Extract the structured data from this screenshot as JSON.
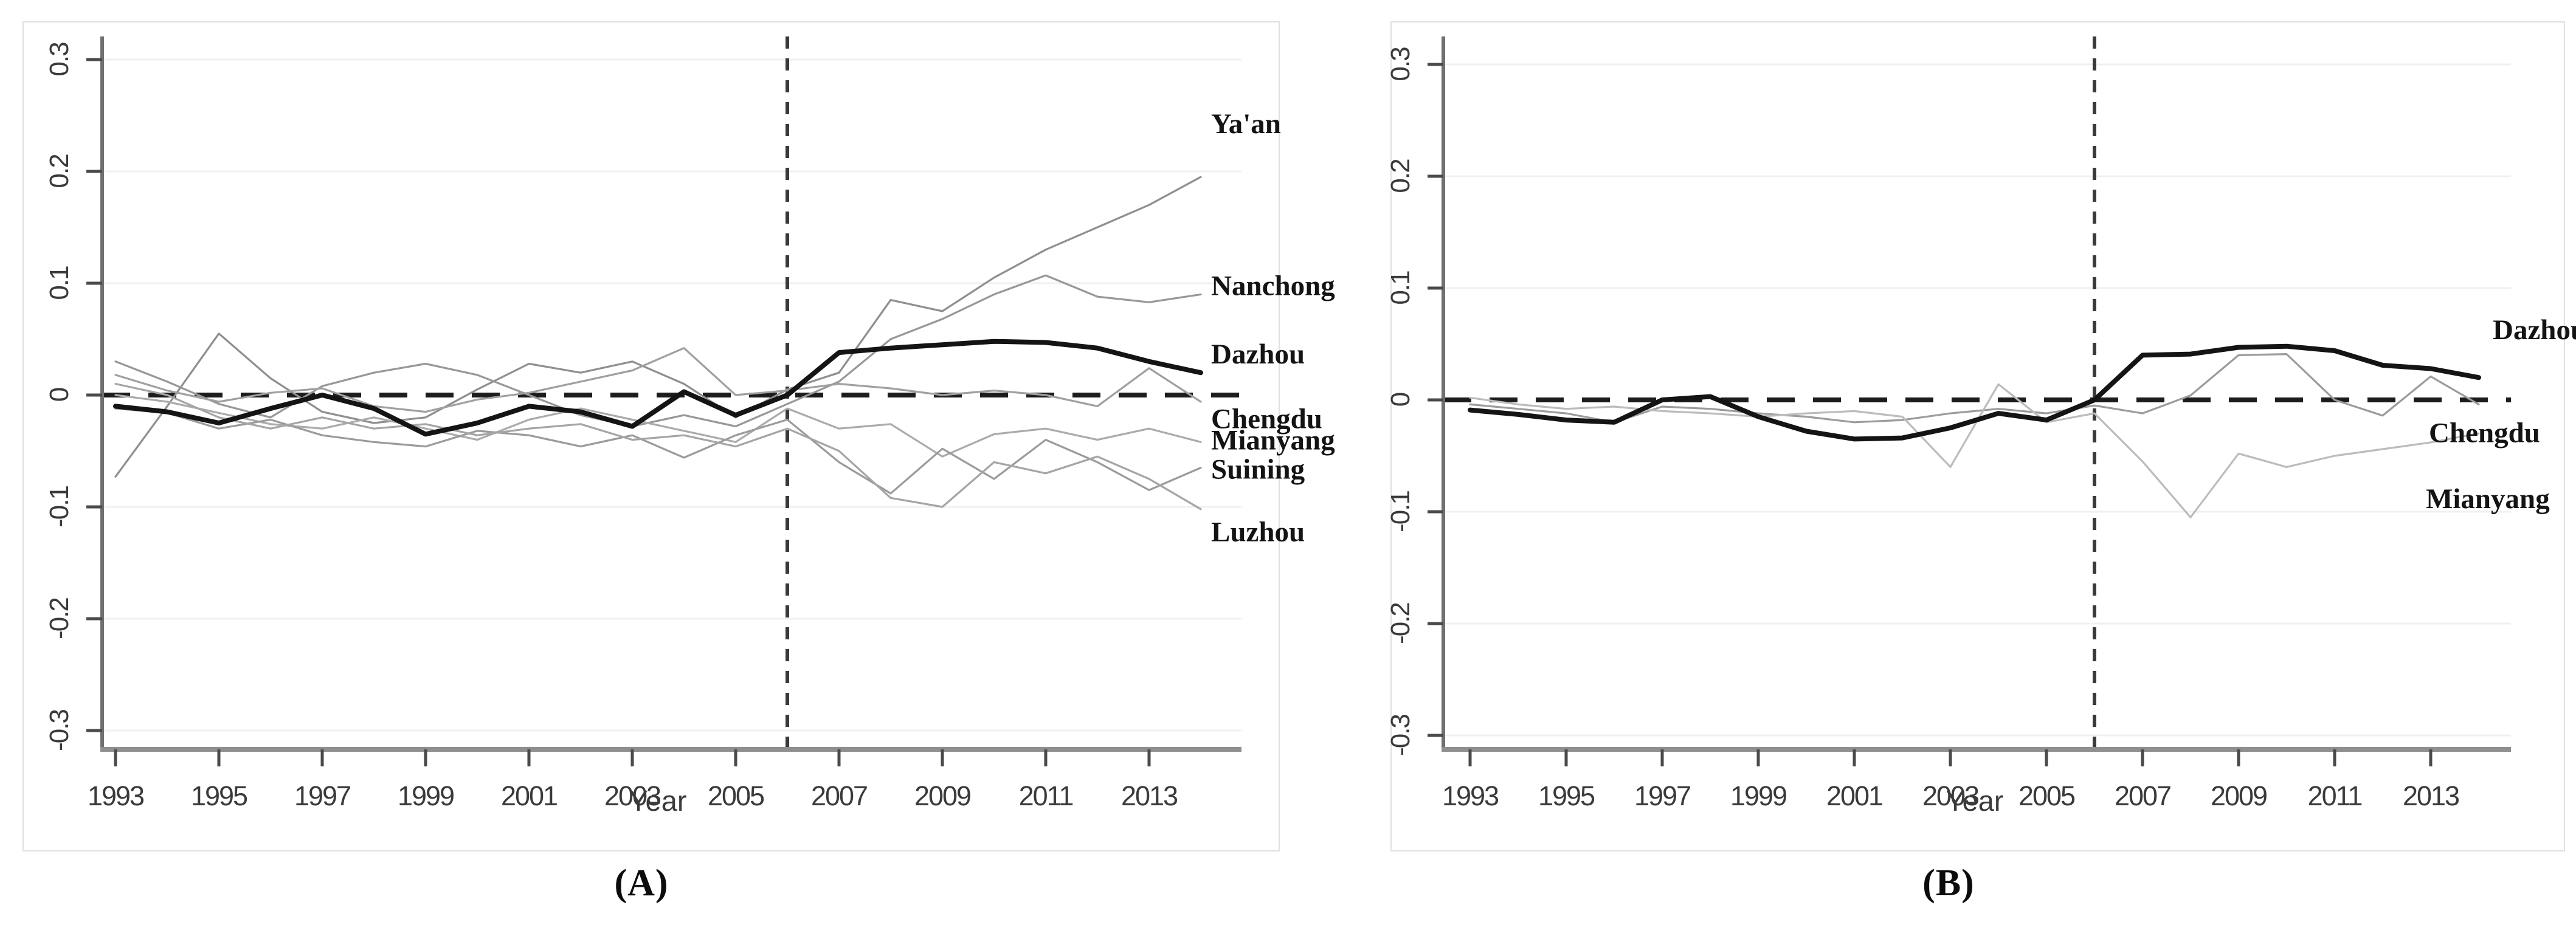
{
  "figure": {
    "caption_a": "(A)",
    "caption_b": "(B)"
  },
  "colors": {
    "axis": "#8f8f8f",
    "tick": "#4a4a4a",
    "tick_text": "#3a3a3a",
    "grid": "#f0f0f0",
    "zero_dash": "#1c1c1c",
    "vline_dash": "#3a3a3a",
    "city_label_text": "#141414",
    "figure_border": "#e0e0e0",
    "emphasis_line": "#141414"
  },
  "chart_data": [
    {
      "panel": "A",
      "type": "line",
      "caption": "(A)",
      "xlabel": "Year",
      "x": [
        1993,
        1994,
        1995,
        1996,
        1997,
        1998,
        1999,
        2000,
        2001,
        2002,
        2003,
        2004,
        2005,
        2006,
        2007,
        2008,
        2009,
        2010,
        2011,
        2012,
        2013,
        2014
      ],
      "xticks": [
        1993,
        1995,
        1997,
        1999,
        2001,
        2003,
        2005,
        2007,
        2009,
        2011,
        2013
      ],
      "yticks": [
        0.3,
        0.2,
        0.1,
        0,
        -0.1,
        -0.2,
        -0.3
      ],
      "ylim": [
        -0.3,
        0.3
      ],
      "treatment_vline_year": 2006,
      "zero_dashed_hline": 0,
      "grid": "horizontal-light",
      "legend_position": "right-margin-labels",
      "series": [
        {
          "name": "Ya'an",
          "color": "#8f8f8f",
          "width": 3.2,
          "emphasis": false,
          "label_value": 0.243,
          "values": [
            -0.073,
            -0.01,
            0.055,
            0.015,
            -0.015,
            -0.025,
            -0.02,
            0.005,
            0.028,
            0.02,
            0.03,
            0.01,
            -0.02,
            0.005,
            0.02,
            0.085,
            0.075,
            0.105,
            0.13,
            0.15,
            0.17,
            0.195
          ]
        },
        {
          "name": "Nanchong",
          "color": "#989898",
          "width": 3.2,
          "emphasis": false,
          "label_value": 0.098,
          "values": [
            0.03,
            0.012,
            -0.008,
            -0.02,
            0.008,
            0.02,
            0.028,
            0.018,
            0.0,
            -0.018,
            -0.028,
            -0.018,
            -0.028,
            -0.008,
            0.012,
            0.05,
            0.068,
            0.09,
            0.107,
            0.088,
            0.083,
            0.09
          ]
        },
        {
          "name": "Dazhou",
          "color": "#141414",
          "width": 8,
          "emphasis": true,
          "label_value": 0.037,
          "values": [
            -0.01,
            -0.015,
            -0.025,
            -0.012,
            0.0,
            -0.012,
            -0.035,
            -0.025,
            -0.01,
            -0.015,
            -0.028,
            0.003,
            -0.018,
            0.0,
            0.038,
            0.042,
            0.045,
            0.048,
            0.047,
            0.042,
            0.03,
            0.02
          ]
        },
        {
          "name": "Chengdu",
          "color": "#a0a0a0",
          "width": 3.2,
          "emphasis": false,
          "label_value": -0.021,
          "values": [
            0.018,
            0.004,
            -0.006,
            0.002,
            0.006,
            -0.01,
            -0.015,
            -0.004,
            0.002,
            0.012,
            0.022,
            0.042,
            0.0,
            0.004,
            0.01,
            0.006,
            0.0,
            0.004,
            0.0,
            -0.01,
            0.024,
            -0.006
          ]
        },
        {
          "name": "Mianyang",
          "color": "#ababab",
          "width": 3.2,
          "emphasis": false,
          "label_value": -0.04,
          "values": [
            0.0,
            -0.006,
            -0.016,
            -0.026,
            -0.03,
            -0.02,
            -0.03,
            -0.04,
            -0.022,
            -0.012,
            -0.022,
            -0.032,
            -0.042,
            -0.012,
            -0.03,
            -0.026,
            -0.055,
            -0.035,
            -0.03,
            -0.04,
            -0.03,
            -0.042
          ]
        },
        {
          "name": "Suining",
          "color": "#9b9b9b",
          "width": 3.2,
          "emphasis": false,
          "label_value": -0.066,
          "values": [
            -0.012,
            -0.016,
            -0.03,
            -0.022,
            -0.036,
            -0.042,
            -0.046,
            -0.032,
            -0.036,
            -0.046,
            -0.036,
            -0.056,
            -0.036,
            -0.022,
            -0.06,
            -0.088,
            -0.048,
            -0.075,
            -0.04,
            -0.06,
            -0.085,
            -0.065
          ]
        },
        {
          "name": "Luzhou",
          "color": "#a5a5a5",
          "width": 3.2,
          "emphasis": false,
          "label_value": -0.122,
          "values": [
            0.01,
            0.0,
            -0.02,
            -0.03,
            -0.02,
            -0.03,
            -0.026,
            -0.036,
            -0.03,
            -0.026,
            -0.04,
            -0.036,
            -0.046,
            -0.03,
            -0.05,
            -0.092,
            -0.1,
            -0.06,
            -0.07,
            -0.055,
            -0.075,
            -0.102
          ]
        }
      ]
    },
    {
      "panel": "B",
      "type": "line",
      "caption": "(B)",
      "xlabel": "Year",
      "x": [
        1993,
        1994,
        1995,
        1996,
        1997,
        1998,
        1999,
        2000,
        2001,
        2002,
        2003,
        2004,
        2005,
        2006,
        2007,
        2008,
        2009,
        2010,
        2011,
        2012,
        2013,
        2014
      ],
      "xticks": [
        1993,
        1995,
        1997,
        1999,
        2001,
        2003,
        2005,
        2007,
        2009,
        2011,
        2013
      ],
      "yticks": [
        0.3,
        0.2,
        0.1,
        0,
        -0.1,
        -0.2,
        -0.3
      ],
      "ylim": [
        -0.3,
        0.3
      ],
      "treatment_vline_year": 2006,
      "zero_dashed_hline": 0,
      "grid": "horizontal-light",
      "legend_position": "right-margin-labels",
      "series": [
        {
          "name": "Dazhou",
          "color": "#141414",
          "width": 8,
          "emphasis": true,
          "label_value": 0.063,
          "label_x": 4100,
          "values": [
            -0.009,
            -0.013,
            -0.018,
            -0.02,
            0.0,
            0.003,
            -0.015,
            -0.028,
            -0.035,
            -0.034,
            -0.025,
            -0.012,
            -0.018,
            0.0,
            0.04,
            0.041,
            0.047,
            0.048,
            0.044,
            0.031,
            0.028,
            0.02
          ]
        },
        {
          "name": "Chengdu",
          "color": "#9c9c9c",
          "width": 3.2,
          "emphasis": false,
          "label_value": -0.029,
          "label_x": 3995,
          "values": [
            -0.004,
            -0.008,
            -0.012,
            -0.02,
            -0.006,
            -0.008,
            -0.012,
            -0.015,
            -0.02,
            -0.018,
            -0.012,
            -0.008,
            -0.012,
            -0.005,
            -0.012,
            0.004,
            0.04,
            0.041,
            0.0,
            -0.014,
            0.021,
            -0.004
          ]
        },
        {
          "name": "Mianyang",
          "color": "#bcbcbc",
          "width": 3.2,
          "emphasis": false,
          "label_value": -0.088,
          "label_x": 3990,
          "values": [
            0.002,
            -0.004,
            -0.008,
            -0.006,
            -0.01,
            -0.012,
            -0.015,
            -0.012,
            -0.01,
            -0.015,
            -0.06,
            0.014,
            -0.02,
            -0.012,
            -0.055,
            -0.105,
            -0.048,
            -0.06,
            -0.05,
            -0.044,
            -0.038,
            -0.03
          ]
        }
      ]
    }
  ]
}
